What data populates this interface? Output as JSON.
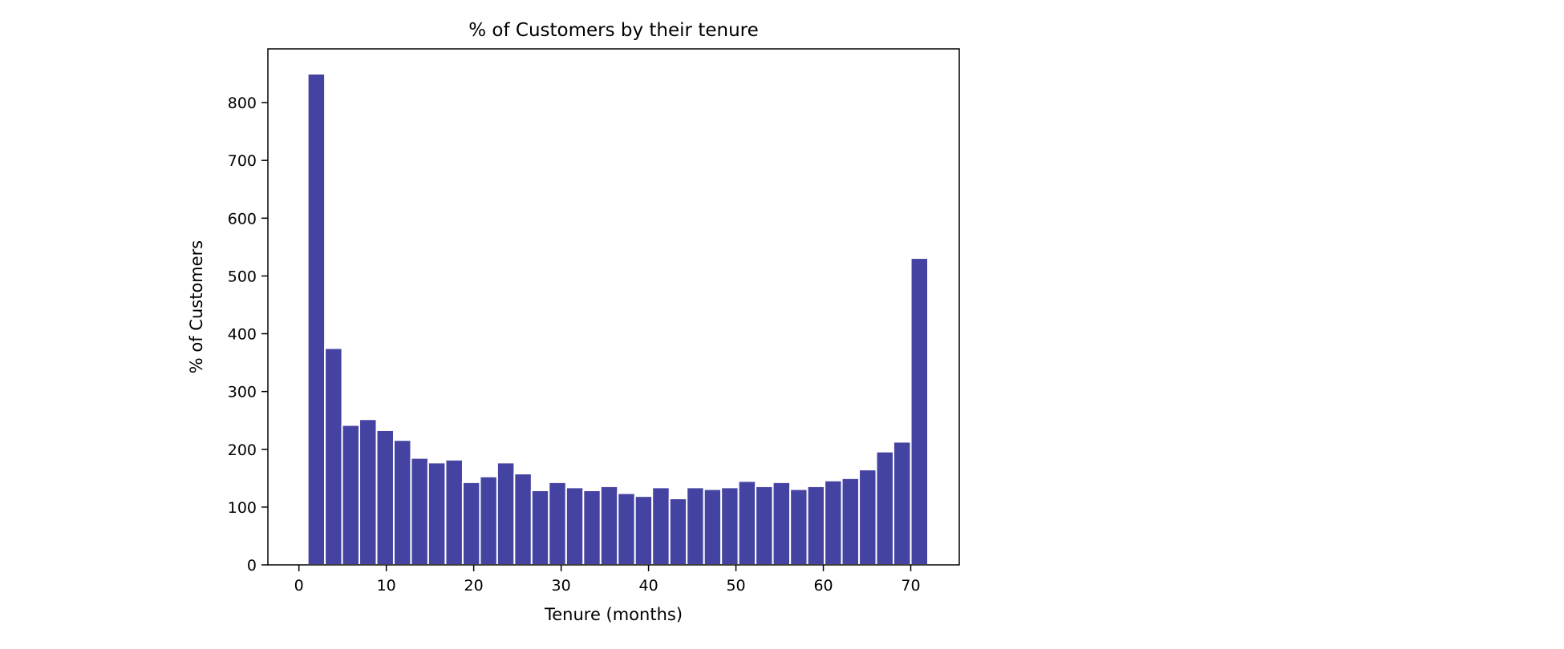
{
  "chart_data": {
    "type": "bar",
    "title": "% of Customers by their tenure",
    "xlabel": "Tenure (months)",
    "ylabel": "% of Customers",
    "xlim": [
      -3.55,
      75.55
    ],
    "ylim": [
      0,
      893
    ],
    "xticks": [
      0,
      10,
      20,
      30,
      40,
      50,
      60,
      70
    ],
    "yticks": [
      0,
      100,
      200,
      300,
      400,
      500,
      600,
      700,
      800
    ],
    "bin_width": 1.972,
    "bar_color": "#4543a2",
    "edge_color": "#ffffff",
    "grid": false,
    "series": [
      {
        "x": [
          1.99,
          3.96,
          5.93,
          7.9,
          9.87,
          11.84,
          13.81,
          15.78,
          17.76,
          19.73,
          21.7,
          23.67,
          25.64,
          27.61,
          29.58,
          31.56,
          33.53,
          35.5,
          37.47,
          39.44,
          41.41,
          43.39,
          45.36,
          47.33,
          49.3,
          51.27,
          53.24,
          55.21,
          57.19,
          59.16,
          61.13,
          63.1,
          65.07,
          67.04,
          69.01,
          70.99
        ],
        "values": [
          850,
          375,
          242,
          252,
          233,
          216,
          185,
          177,
          182,
          143,
          153,
          177,
          158,
          129,
          143,
          134,
          129,
          136,
          124,
          119,
          134,
          115,
          134,
          131,
          134,
          145,
          136,
          143,
          131,
          136,
          146,
          150,
          165,
          196,
          213,
          531
        ]
      }
    ]
  }
}
